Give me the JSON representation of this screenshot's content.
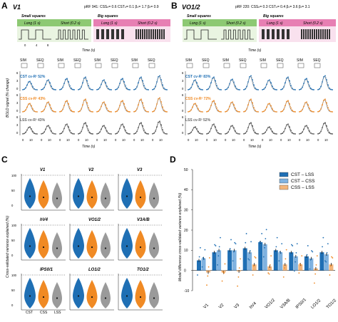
{
  "panelA": {
    "letter": "A",
    "area": "V1",
    "params": "pRF 941: CSS",
    "params_full": "pRF 941: CSSₙ= 0.6  CSTₙ= 0.1  βₛ= 1.7  βₜ= 0.9",
    "small_bars": "Small squares",
    "big_bars": "Big squares",
    "long_label": "Long (1 s)",
    "short_label": "Short (0.2 s)",
    "time_axis": "Time (s)",
    "ticks": [
      "0",
      "4",
      "8"
    ],
    "sim": "SIM",
    "seq": "SEQ",
    "cst_label": "CST cv-R² 52%",
    "css_label": "CSS cv-R² 43%",
    "lss_label": "LSS cv-R² 43%",
    "bold_ylabel": "BOLD signal (% change)",
    "y_ticks": [
      "6",
      "3",
      "0"
    ],
    "x_ticks": [
      "0",
      "10"
    ],
    "x_label": "Time (s)"
  },
  "panelB": {
    "letter": "B",
    "area": "VO1/2",
    "params_full": "pRF 220: CSSₙ= 0.3  CSTₙ= 0.4  βₛ= 3.6  βₜ= 3.1",
    "cst_label": "CST cv-R² 83%",
    "css_label": "CSS cv-R² 72%",
    "lss_label": "LSS cv-R² 52%"
  },
  "panelC": {
    "letter": "C",
    "ylabel": "Cross-validated variance explained (%)",
    "areas": [
      "V1",
      "V2",
      "V3",
      "hV4",
      "VO1/2",
      "V3A/B",
      "IPS0/1",
      "LO1/2",
      "TO1/2"
    ],
    "x_categories": [
      "CST",
      "CSS",
      "LSS"
    ],
    "y_ticks": [
      "100",
      "50",
      "0"
    ],
    "colors": {
      "CST": "#1f6fb4",
      "CSS": "#f08a24",
      "LSS": "#9a9a9a"
    }
  },
  "panelD": {
    "letter": "D",
    "ylabel": "Model difference cross-validated variance explained (%)",
    "legend": [
      "CST – LSS",
      "CST – CSS",
      "CSS – LSS"
    ],
    "y_ticks": [
      "50",
      "40",
      "30",
      "20",
      "10",
      "0",
      "-10"
    ],
    "chart_data": {
      "type": "bar",
      "categories": [
        "V1",
        "V2",
        "V3",
        "hV4",
        "VO1/2",
        "V3A/B",
        "IPS0/1",
        "LO1/2",
        "TO1/2"
      ],
      "series": [
        {
          "name": "CST – LSS",
          "values": [
            5,
            9,
            10,
            11,
            14,
            10,
            9,
            7,
            9
          ]
        },
        {
          "name": "CST – CSS",
          "values": [
            6,
            10,
            10,
            9,
            13,
            9,
            7,
            6,
            8
          ]
        },
        {
          "name": "CSS – LSS",
          "values": [
            -1,
            -1,
            -0.5,
            3,
            2,
            3,
            3,
            1,
            3
          ]
        }
      ],
      "ylim": [
        -10,
        50
      ]
    }
  }
}
